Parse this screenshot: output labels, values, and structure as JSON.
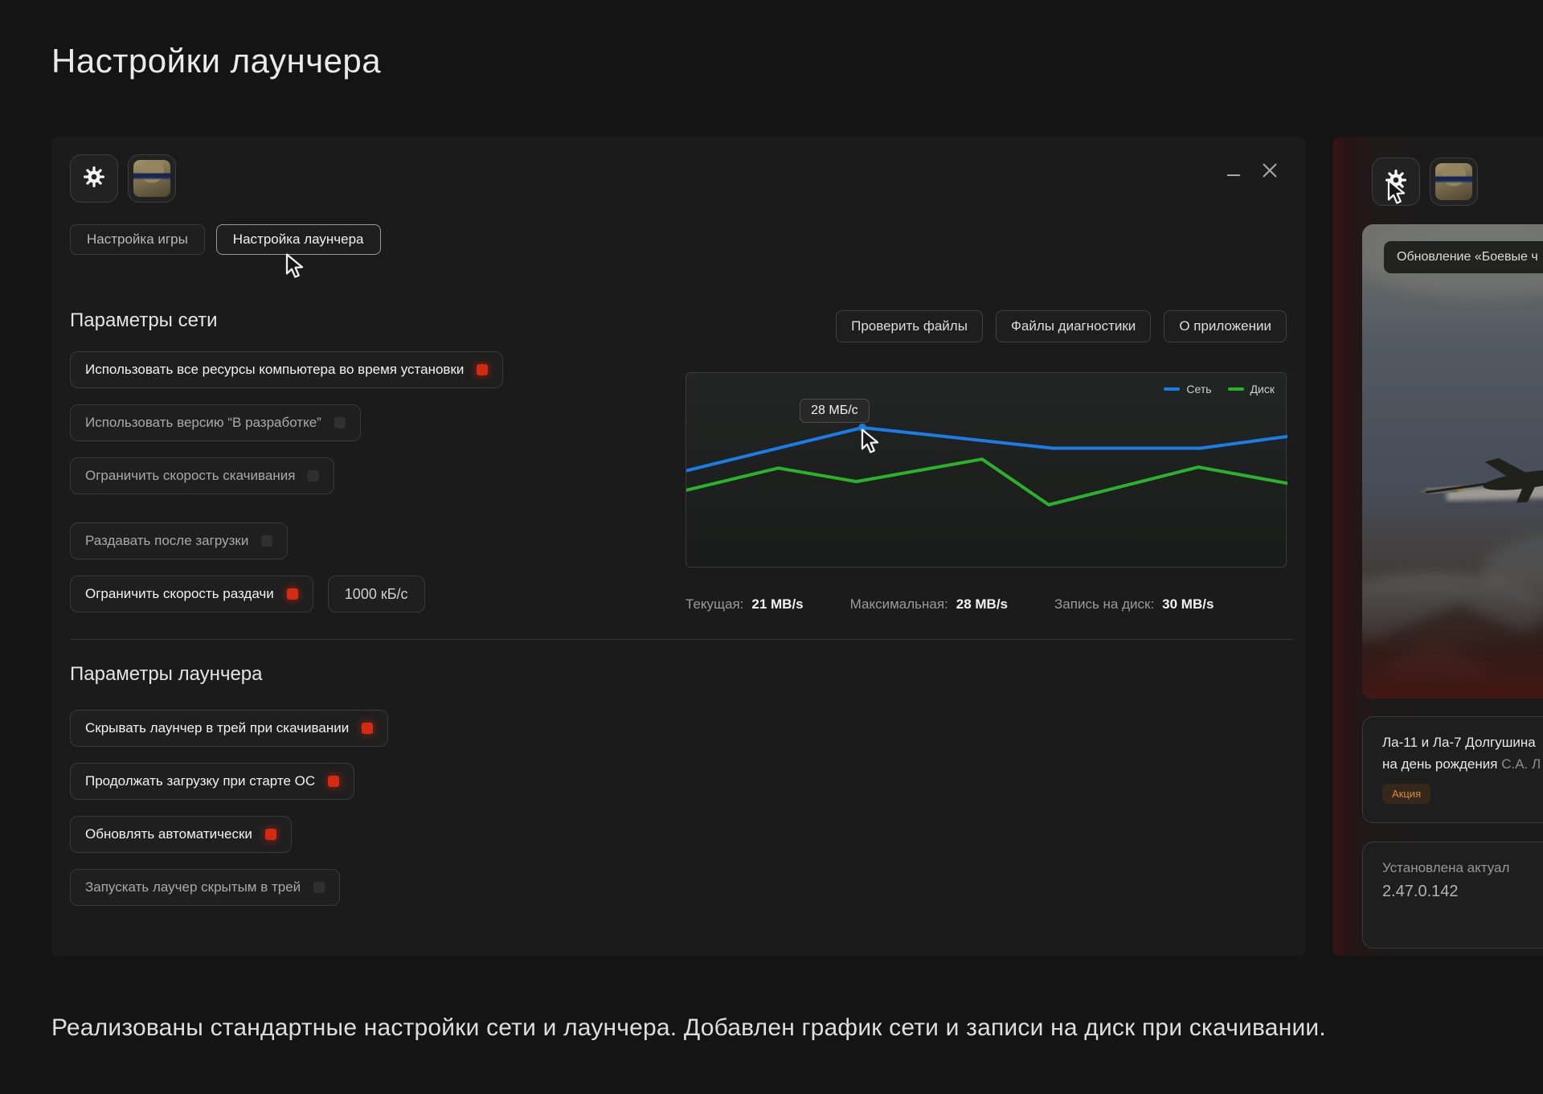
{
  "page": {
    "title": "Настройки лаунчера",
    "caption": "Реализованы стандартные настройки сети и лаунчера. Добавлен график сети и записи на диск при скачивании."
  },
  "settings_window": {
    "tabs": [
      {
        "label": "Настройка игры",
        "active": false
      },
      {
        "label": "Настройка лаунчера",
        "active": true
      }
    ],
    "actions": [
      {
        "name": "verify-files-button",
        "label": "Проверить файлы"
      },
      {
        "name": "diagnostic-files-button",
        "label": "Файлы диагностики"
      },
      {
        "name": "about-app-button",
        "label": "О приложении"
      }
    ],
    "network_section": {
      "title": "Параметры сети",
      "toggles": [
        {
          "name": "use-all-resources-toggle",
          "label": "Использовать все ресурсы компьютера во время установки",
          "checked": true
        },
        {
          "name": "use-dev-version-toggle",
          "label": "Использовать версию “В разработке”",
          "checked": false
        },
        {
          "name": "limit-download-speed-toggle",
          "label": "Ограничить скорость скачивания",
          "checked": false
        },
        {
          "name": "seed-after-download-toggle",
          "label": "Раздавать после загрузки",
          "checked": false,
          "gap_before": true
        },
        {
          "name": "limit-upload-speed-toggle",
          "label": "Ограничить скорость раздачи",
          "checked": true,
          "input_value": "1000 кБ/с"
        }
      ],
      "stats": [
        {
          "label": "Текущая:",
          "value": "21 MB/s"
        },
        {
          "label": "Максимальная:",
          "value": "28 MB/s"
        },
        {
          "label": "Запись на диск:",
          "value": "30 MB/s"
        }
      ]
    },
    "launcher_section": {
      "title": "Параметры лаунчера",
      "toggles": [
        {
          "name": "hide-launcher-to-tray-toggle",
          "label": "Скрывать лаунчер в трей при скачивании",
          "checked": true
        },
        {
          "name": "continue-download-on-os-start-toggle",
          "label": "Продолжать загрузку при старте ОС",
          "checked": true
        },
        {
          "name": "auto-update-toggle",
          "label": "Обновлять автоматически",
          "checked": true
        },
        {
          "name": "start-hidden-in-tray-toggle",
          "label": "Запускать лаучер скрытым в трей",
          "checked": false
        }
      ]
    }
  },
  "chart_data": {
    "type": "line",
    "title": "",
    "xlabel": "",
    "ylabel": "",
    "axes": {
      "x_visible": false,
      "y_visible": false,
      "grid": false
    },
    "legend_position": "top-right",
    "legend": [
      {
        "name": "Сеть",
        "color": "#1b7ce6"
      },
      {
        "name": "Диск",
        "color": "#2ab32a"
      }
    ],
    "tooltip": {
      "text": "28 МБ/с",
      "series": "Сеть",
      "point_index": 1
    },
    "series": [
      {
        "name": "Сеть",
        "color": "#1b7ce6",
        "unit": "MB/s",
        "values_mbps_est": [
          23,
          28,
          25.5,
          25.5,
          27
        ],
        "points_frac": [
          [
            0,
            0.5
          ],
          [
            0.293,
            0.28
          ],
          [
            0.61,
            0.385
          ],
          [
            0.855,
            0.385
          ],
          [
            1,
            0.325
          ]
        ],
        "marker_index": 1
      },
      {
        "name": "Диск",
        "color": "#2ab32a",
        "unit": "MB/s",
        "values_mbps_est": [
          26,
          29,
          27,
          30,
          23,
          29,
          27
        ],
        "points_frac": [
          [
            0,
            0.6
          ],
          [
            0.153,
            0.487
          ],
          [
            0.283,
            0.556
          ],
          [
            0.492,
            0.441
          ],
          [
            0.603,
            0.675
          ],
          [
            0.852,
            0.482
          ],
          [
            1,
            0.565
          ]
        ]
      }
    ]
  },
  "preview_panel": {
    "news_pill": "Обновление «Боевые ч",
    "news_card": {
      "line1": "Ла-11 и Ла-7 Долгушина",
      "line2_main": "на день рождения ",
      "line2_dim": "С.А. Л",
      "badge": "Акция"
    },
    "version_card": {
      "line1": "Установлена актуал",
      "line2": "2.47.0.142"
    }
  },
  "colors": {
    "accent_red": "#d42a12",
    "chart_blue": "#1b7ce6",
    "chart_green": "#2ab32a",
    "badge_orange": "#d98a3d"
  }
}
